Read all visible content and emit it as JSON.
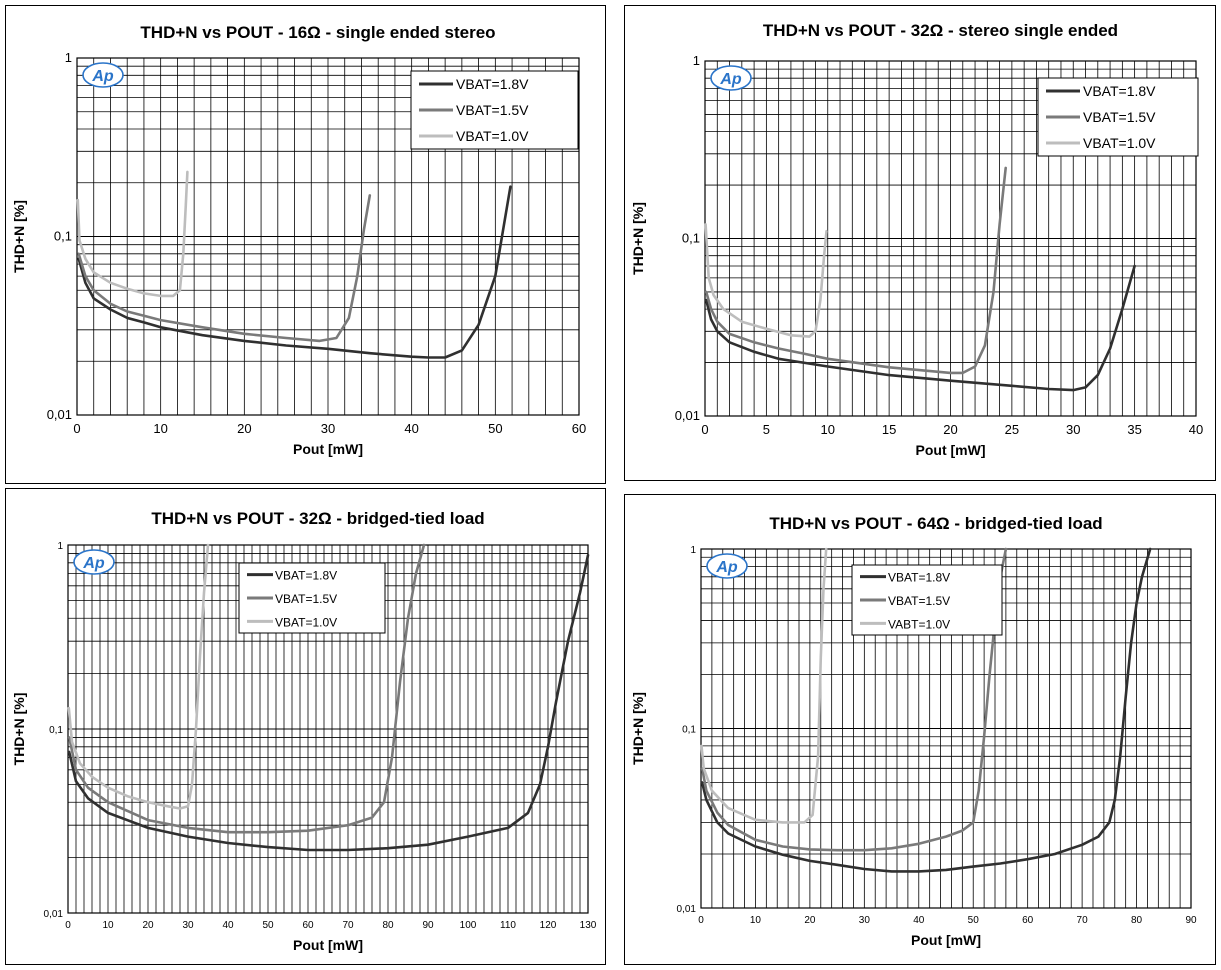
{
  "colors": {
    "s18": "#303030",
    "s15": "#7a7a7a",
    "s10": "#bdbdbd",
    "logo": "#2a74c9"
  },
  "logo_text": "Ap",
  "chart_data": [
    {
      "type": "line",
      "title": "THD+N vs POUT  -  16Ω - single ended stereo",
      "xlabel": "Pout [mW]",
      "ylabel": "THD+N [%]",
      "xlim": [
        0,
        60
      ],
      "ylim": [
        0.01,
        1
      ],
      "yscale": "log",
      "xticks": [
        "0",
        "10",
        "20",
        "30",
        "40",
        "50",
        "60"
      ],
      "yticks": [
        "0,01",
        "0,1",
        "1"
      ],
      "grid": true,
      "legend_position": "top-right",
      "series": [
        {
          "name": "VBAT=1.8V",
          "x": [
            0.2,
            1,
            2,
            4,
            6,
            8,
            10,
            15,
            20,
            25,
            30,
            35,
            40,
            42,
            44,
            46,
            48,
            50,
            51.8
          ],
          "y": [
            0.075,
            0.055,
            0.045,
            0.039,
            0.035,
            0.033,
            0.031,
            0.028,
            0.026,
            0.0245,
            0.0235,
            0.0222,
            0.0212,
            0.021,
            0.021,
            0.023,
            0.032,
            0.06,
            0.19
          ]
        },
        {
          "name": "VBAT=1.5V",
          "x": [
            0.2,
            1,
            2,
            4,
            6,
            8,
            10,
            15,
            20,
            25,
            29,
            31,
            32.5,
            33.5,
            34.3,
            35
          ],
          "y": [
            0.08,
            0.06,
            0.05,
            0.042,
            0.038,
            0.036,
            0.034,
            0.031,
            0.0285,
            0.027,
            0.026,
            0.027,
            0.035,
            0.06,
            0.11,
            0.17
          ]
        },
        {
          "name": "VBAT=1.0V",
          "x": [
            0.1,
            0.3,
            1,
            2,
            4,
            6,
            8,
            10,
            11.5,
            12.3,
            12.7,
            13,
            13.2
          ],
          "y": [
            0.16,
            0.095,
            0.075,
            0.063,
            0.055,
            0.051,
            0.048,
            0.0465,
            0.0465,
            0.05,
            0.08,
            0.15,
            0.23
          ]
        }
      ]
    },
    {
      "type": "line",
      "title": "THD+N vs POUT  -  32Ω - stereo single ended",
      "xlabel": "Pout [mW]",
      "ylabel": "THD+N [%]",
      "xlim": [
        0,
        40
      ],
      "ylim": [
        0.01,
        1
      ],
      "yscale": "log",
      "xticks": [
        "0",
        "5",
        "10",
        "15",
        "20",
        "25",
        "30",
        "35",
        "40"
      ],
      "yticks": [
        "0,01",
        "0,1",
        "1"
      ],
      "grid": true,
      "legend_position": "top-right",
      "series": [
        {
          "name": "VBAT=1.8V",
          "x": [
            0.1,
            0.5,
            1,
            2,
            4,
            6,
            8,
            10,
            15,
            20,
            25,
            28,
            30,
            31,
            32,
            33,
            34,
            35
          ],
          "y": [
            0.045,
            0.035,
            0.03,
            0.026,
            0.023,
            0.021,
            0.02,
            0.019,
            0.017,
            0.0158,
            0.0148,
            0.0142,
            0.014,
            0.0145,
            0.017,
            0.024,
            0.04,
            0.07
          ]
        },
        {
          "name": "VBAT=1.5V",
          "x": [
            0.1,
            0.5,
            1,
            2,
            4,
            6,
            8,
            10,
            15,
            20,
            21,
            22,
            22.8,
            23.5,
            24,
            24.5
          ],
          "y": [
            0.05,
            0.04,
            0.034,
            0.029,
            0.026,
            0.024,
            0.0225,
            0.021,
            0.0188,
            0.0175,
            0.0175,
            0.019,
            0.025,
            0.05,
            0.12,
            0.25
          ]
        },
        {
          "name": "VBAT=1.0V",
          "x": [
            0.05,
            0.3,
            0.7,
            1.5,
            3,
            5,
            7,
            8.5,
            9,
            9.4,
            9.7,
            9.9
          ],
          "y": [
            0.12,
            0.06,
            0.048,
            0.04,
            0.034,
            0.031,
            0.0285,
            0.028,
            0.03,
            0.045,
            0.08,
            0.11
          ]
        }
      ]
    },
    {
      "type": "line",
      "title": "THD+N vs POUT - 32Ω - bridged-tied load",
      "xlabel": "Pout [mW]",
      "ylabel": "THD+N [%]",
      "xlim": [
        0,
        130
      ],
      "ylim": [
        0.01,
        1
      ],
      "yscale": "log",
      "xticks": [
        "0",
        "10",
        "20",
        "30",
        "40",
        "50",
        "60",
        "70",
        "80",
        "90",
        "100",
        "110",
        "120",
        "130"
      ],
      "yticks": [
        "0,01",
        "0,1",
        "1"
      ],
      "grid": true,
      "legend_position": "top-center",
      "series": [
        {
          "name": "VBAT=1.8V",
          "x": [
            0.3,
            2,
            5,
            10,
            20,
            30,
            40,
            50,
            60,
            70,
            80,
            90,
            100,
            110,
            115,
            118,
            120,
            122,
            125,
            128,
            130
          ],
          "y": [
            0.075,
            0.052,
            0.042,
            0.035,
            0.029,
            0.026,
            0.024,
            0.0228,
            0.022,
            0.022,
            0.0225,
            0.0235,
            0.026,
            0.029,
            0.035,
            0.05,
            0.08,
            0.14,
            0.3,
            0.55,
            0.88
          ]
        },
        {
          "name": "VBAT=1.5V",
          "x": [
            0.3,
            2,
            5,
            10,
            20,
            30,
            40,
            50,
            60,
            70,
            76,
            79,
            81,
            83,
            85,
            87,
            89
          ],
          "y": [
            0.09,
            0.06,
            0.048,
            0.04,
            0.032,
            0.029,
            0.0275,
            0.0275,
            0.028,
            0.03,
            0.033,
            0.04,
            0.07,
            0.18,
            0.4,
            0.7,
            1.0
          ]
        },
        {
          "name": "VBAT=1.0V",
          "x": [
            0.2,
            1,
            3,
            6,
            10,
            15,
            20,
            25,
            28,
            30,
            31,
            32,
            33,
            34,
            35
          ],
          "y": [
            0.13,
            0.085,
            0.065,
            0.055,
            0.048,
            0.043,
            0.04,
            0.038,
            0.037,
            0.038,
            0.05,
            0.1,
            0.25,
            0.55,
            1.0
          ]
        }
      ]
    },
    {
      "type": "line",
      "title": "THD+N vs POUT - 64Ω - bridged-tied load",
      "xlabel": "Pout [mW]",
      "ylabel": "THD+N [%]",
      "xlim": [
        0,
        90
      ],
      "ylim": [
        0.01,
        1
      ],
      "yscale": "log",
      "xticks": [
        "0",
        "10",
        "20",
        "30",
        "40",
        "50",
        "60",
        "70",
        "80",
        "90"
      ],
      "yticks": [
        "0,01",
        "0,1",
        "1"
      ],
      "grid": true,
      "legend_position": "top-center",
      "series": [
        {
          "name": "VBAT=1.8V",
          "x": [
            0.2,
            1,
            3,
            5,
            10,
            15,
            20,
            25,
            30,
            35,
            40,
            45,
            50,
            55,
            60,
            65,
            70,
            73,
            75,
            76,
            77,
            78,
            79,
            80,
            81,
            82.5
          ],
          "y": [
            0.05,
            0.04,
            0.03,
            0.026,
            0.022,
            0.0198,
            0.0183,
            0.0174,
            0.0165,
            0.016,
            0.016,
            0.0163,
            0.017,
            0.0177,
            0.0187,
            0.02,
            0.0225,
            0.025,
            0.03,
            0.04,
            0.07,
            0.15,
            0.3,
            0.5,
            0.7,
            1.0
          ]
        },
        {
          "name": "VBAT=1.5V",
          "x": [
            0.2,
            1,
            3,
            5,
            10,
            15,
            20,
            25,
            30,
            35,
            40,
            45,
            48,
            50,
            51,
            52,
            53,
            54,
            55,
            56
          ],
          "y": [
            0.06,
            0.045,
            0.034,
            0.029,
            0.024,
            0.022,
            0.0212,
            0.021,
            0.021,
            0.0215,
            0.0228,
            0.025,
            0.027,
            0.03,
            0.045,
            0.09,
            0.2,
            0.4,
            0.7,
            1.0
          ]
        },
        {
          "name": "VABT=1.0V",
          "x": [
            0.1,
            0.5,
            2,
            5,
            10,
            15,
            19,
            20.5,
            21.5,
            22,
            22.5,
            23
          ],
          "y": [
            0.08,
            0.06,
            0.045,
            0.036,
            0.031,
            0.03,
            0.03,
            0.033,
            0.07,
            0.25,
            0.6,
            1.0
          ]
        }
      ]
    }
  ]
}
